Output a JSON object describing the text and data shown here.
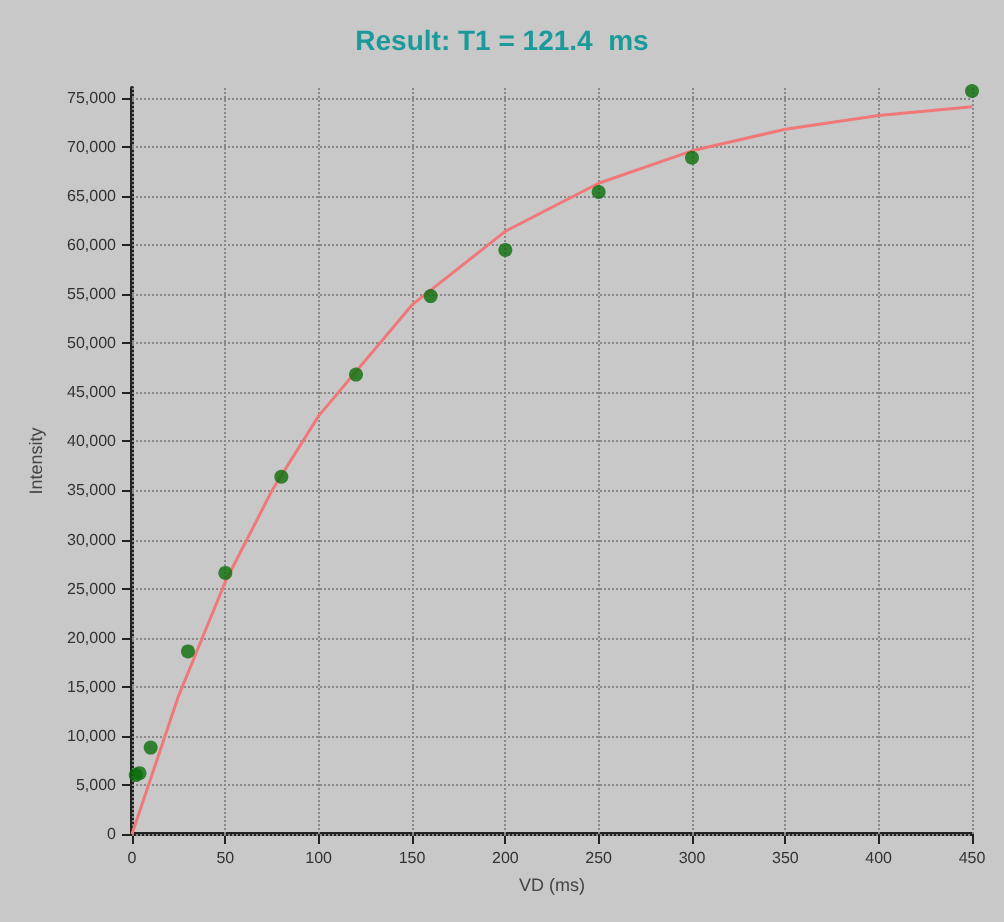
{
  "chart_data": {
    "type": "scatter",
    "title": "Result: T1 = 121.4  ms",
    "xlabel": "VD (ms)",
    "ylabel": "Intensity",
    "xlim": [
      0,
      450
    ],
    "xticks": [
      0,
      50,
      100,
      150,
      200,
      250,
      300,
      350,
      400,
      450
    ],
    "ylim": [
      0,
      76000
    ],
    "yticks": [
      0,
      {
        "value": 5000,
        "label": "5,000"
      },
      {
        "value": 10000,
        "label": "10,000"
      },
      {
        "value": 15000,
        "label": "15,000"
      },
      {
        "value": 20000,
        "label": "20,000"
      },
      {
        "value": 25000,
        "label": "25,000"
      },
      {
        "value": 30000,
        "label": "30,000"
      },
      {
        "value": 35000,
        "label": "35,000"
      },
      {
        "value": 40000,
        "label": "40,000"
      },
      {
        "value": 45000,
        "label": "45,000"
      },
      {
        "value": 50000,
        "label": "50,000"
      },
      {
        "value": 55000,
        "label": "55,000"
      },
      {
        "value": 60000,
        "label": "60,000"
      },
      {
        "value": 65000,
        "label": "65,000"
      },
      {
        "value": 70000,
        "label": "70,000"
      },
      {
        "value": 75000,
        "label": "75,000"
      }
    ],
    "grid": true,
    "series": [
      {
        "type": "line",
        "color": "#f07878",
        "marker": "none",
        "line_style": "solid",
        "x": [
          0,
          25,
          50,
          75,
          100,
          150,
          200,
          250,
          300,
          350,
          400,
          450
        ],
        "values": [
          0,
          14100,
          25700,
          35000,
          42600,
          53900,
          61400,
          66300,
          69600,
          71800,
          73200,
          74100
        ]
      },
      {
        "color": "#0a6e0a",
        "marker": "circle",
        "x": [
          2,
          4,
          10,
          30,
          50,
          80,
          120,
          160,
          200,
          250,
          300,
          450
        ],
        "values": [
          6000,
          6200,
          8800,
          18600,
          26600,
          36400,
          46800,
          54800,
          59500,
          65400,
          68900,
          75700
        ]
      }
    ]
  }
}
